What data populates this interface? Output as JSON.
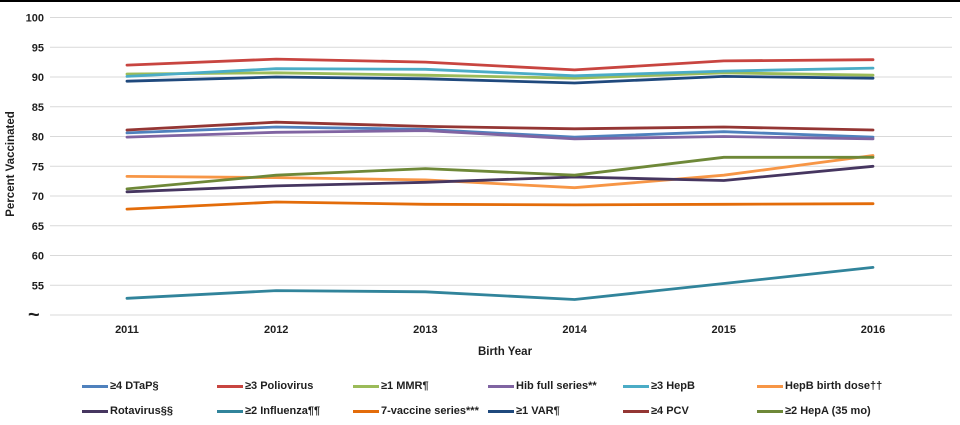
{
  "chart_data": {
    "type": "line",
    "title": "",
    "xlabel": "Birth Year",
    "ylabel": "Percent Vaccinated",
    "x_tick_labels": [
      "2011",
      "2012",
      "2013",
      "2014",
      "2015",
      "2016"
    ],
    "y_tick_labels": [
      "100",
      "95",
      "90",
      "85",
      "80",
      "75",
      "70",
      "65",
      "60",
      "55"
    ],
    "y_axis_break_symbol": "~",
    "ylim": [
      50,
      100
    ],
    "grid": true,
    "gridline_color": "#d9d9d9",
    "legend_position": "bottom",
    "legend_rows": 2,
    "series": [
      {
        "name": "≥4 DTaP§",
        "slug": "dtap",
        "color": "#4F81BD",
        "values": [
          80.6,
          81.6,
          81.2,
          79.9,
          80.8,
          79.9
        ]
      },
      {
        "name": "≥3 Poliovirus",
        "slug": "poliovirus",
        "color": "#C84540",
        "values": [
          92.0,
          93.0,
          92.5,
          91.2,
          92.7,
          92.9
        ]
      },
      {
        "name": "≥1 MMR¶",
        "slug": "mmr",
        "color": "#9BBB59",
        "values": [
          90.5,
          90.7,
          90.3,
          89.8,
          90.7,
          90.3
        ]
      },
      {
        "name": "Hib full series**",
        "slug": "hib",
        "color": "#8064A2",
        "values": [
          79.9,
          80.7,
          81.0,
          79.6,
          80.0,
          79.6
        ]
      },
      {
        "name": "≥3 HepB",
        "slug": "hepb3",
        "color": "#4BACC6",
        "values": [
          90.1,
          91.4,
          91.3,
          90.2,
          91.0,
          91.5
        ]
      },
      {
        "name": "HepB birth dose††",
        "slug": "hepb-birth",
        "color": "#F79646",
        "values": [
          73.3,
          73.1,
          72.7,
          71.4,
          73.5,
          76.8
        ]
      },
      {
        "name": "Rotavirus§§",
        "slug": "rotavirus",
        "color": "#463660",
        "values": [
          70.7,
          71.7,
          72.3,
          73.2,
          72.6,
          75.0
        ]
      },
      {
        "name": "≥2 Influenza¶¶",
        "slug": "influenza",
        "color": "#31849B",
        "values": [
          52.8,
          54.1,
          53.9,
          52.6,
          55.3,
          58.0
        ]
      },
      {
        "name": "7-vaccine series***",
        "slug": "seven-vaccine",
        "color": "#E36C0A",
        "values": [
          67.8,
          69.0,
          68.6,
          68.5,
          68.6,
          68.7
        ]
      },
      {
        "name": "≥1 VAR¶",
        "slug": "var",
        "color": "#1F497D",
        "values": [
          89.3,
          90.0,
          89.7,
          89.0,
          90.1,
          89.8
        ]
      },
      {
        "name": "≥4 PCV",
        "slug": "pcv",
        "color": "#943634",
        "values": [
          81.1,
          82.4,
          81.7,
          81.3,
          81.6,
          81.1
        ]
      },
      {
        "name": "≥2 HepA (35 mo)",
        "slug": "hepa",
        "color": "#6E8838",
        "values": [
          71.2,
          73.5,
          74.6,
          73.5,
          76.5,
          76.5
        ]
      }
    ]
  }
}
